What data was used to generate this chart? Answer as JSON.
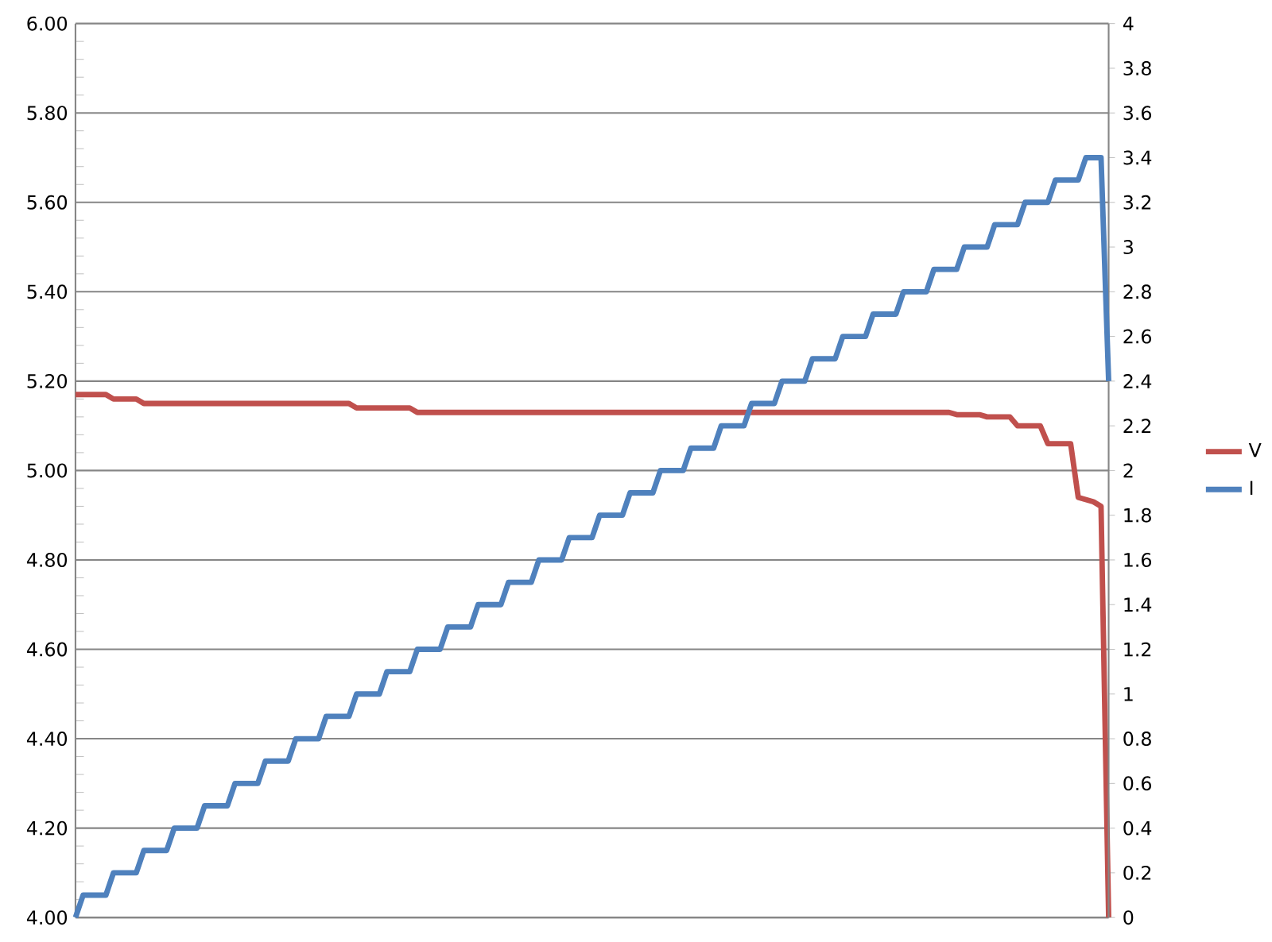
{
  "chart_data": {
    "type": "line",
    "categories": [
      null,
      null,
      null,
      null,
      null,
      null,
      null,
      null,
      null,
      null,
      null,
      null,
      null,
      null,
      null,
      null,
      null,
      null,
      null,
      null,
      null,
      null,
      null,
      null,
      null,
      null,
      null,
      null,
      null,
      null,
      null,
      null,
      null,
      null,
      null,
      null,
      null,
      null,
      null,
      null,
      null,
      null,
      null,
      null,
      null,
      null,
      null,
      null,
      null,
      null,
      null,
      null,
      null,
      null,
      null,
      null,
      null,
      null,
      null,
      null,
      null,
      null,
      null,
      null,
      null,
      null,
      null,
      null,
      null,
      null,
      null,
      null,
      null,
      null,
      null,
      null,
      null,
      null,
      null,
      null,
      null,
      null,
      null,
      null,
      null,
      null,
      null,
      null,
      null,
      null,
      null,
      null,
      null,
      null,
      null,
      null,
      null,
      null,
      null,
      null,
      null,
      null,
      null,
      null,
      null,
      null,
      null,
      null,
      null,
      null,
      null,
      null,
      null,
      null,
      null,
      null,
      null,
      null,
      null,
      null,
      null,
      null,
      null,
      null,
      null,
      null,
      null,
      null,
      null,
      null,
      null,
      null,
      null,
      null,
      null,
      null,
      null
    ],
    "series": [
      {
        "name": "V",
        "color": "#c0504d",
        "axis": "y",
        "values": [
          5.17,
          5.17,
          5.17,
          5.17,
          5.17,
          5.16,
          5.16,
          5.16,
          5.16,
          5.15,
          5.15,
          5.15,
          5.15,
          5.15,
          5.15,
          5.15,
          5.15,
          5.15,
          5.15,
          5.15,
          5.15,
          5.15,
          5.15,
          5.15,
          5.15,
          5.15,
          5.15,
          5.15,
          5.15,
          5.15,
          5.15,
          5.15,
          5.15,
          5.15,
          5.15,
          5.15,
          5.15,
          5.14,
          5.14,
          5.14,
          5.14,
          5.14,
          5.14,
          5.14,
          5.14,
          5.13,
          5.13,
          5.13,
          5.13,
          5.13,
          5.13,
          5.13,
          5.13,
          5.13,
          5.13,
          5.13,
          5.13,
          5.13,
          5.13,
          5.13,
          5.13,
          5.13,
          5.13,
          5.13,
          5.13,
          5.13,
          5.13,
          5.13,
          5.13,
          5.13,
          5.13,
          5.13,
          5.13,
          5.13,
          5.13,
          5.13,
          5.13,
          5.13,
          5.13,
          5.13,
          5.13,
          5.13,
          5.13,
          5.13,
          5.13,
          5.13,
          5.13,
          5.13,
          5.13,
          5.13,
          5.13,
          5.13,
          5.13,
          5.13,
          5.13,
          5.13,
          5.13,
          5.13,
          5.13,
          5.13,
          5.13,
          5.13,
          5.13,
          5.13,
          5.13,
          5.13,
          5.13,
          5.13,
          5.13,
          5.13,
          5.13,
          5.13,
          5.13,
          5.13,
          5.13,
          5.13,
          5.125,
          5.125,
          5.125,
          5.125,
          5.12,
          5.12,
          5.12,
          5.12,
          5.1,
          5.1,
          5.1,
          5.1,
          5.06,
          5.06,
          5.06,
          5.06,
          4.94,
          4.935,
          4.93,
          4.92,
          4.0
        ]
      },
      {
        "name": "I",
        "color": "#4f81bd",
        "axis": "y2",
        "values": [
          0,
          0.1,
          0.1,
          0.1,
          0.1,
          0.2,
          0.2,
          0.2,
          0.2,
          0.3,
          0.3,
          0.3,
          0.3,
          0.4,
          0.4,
          0.4,
          0.4,
          0.5,
          0.5,
          0.5,
          0.5,
          0.6,
          0.6,
          0.6,
          0.6,
          0.7,
          0.7,
          0.7,
          0.7,
          0.8,
          0.8,
          0.8,
          0.8,
          0.9,
          0.9,
          0.9,
          0.9,
          1.0,
          1.0,
          1.0,
          1.0,
          1.1,
          1.1,
          1.1,
          1.1,
          1.2,
          1.2,
          1.2,
          1.2,
          1.3,
          1.3,
          1.3,
          1.3,
          1.4,
          1.4,
          1.4,
          1.4,
          1.5,
          1.5,
          1.5,
          1.5,
          1.6,
          1.6,
          1.6,
          1.6,
          1.7,
          1.7,
          1.7,
          1.7,
          1.8,
          1.8,
          1.8,
          1.8,
          1.9,
          1.9,
          1.9,
          1.9,
          2.0,
          2.0,
          2.0,
          2.0,
          2.1,
          2.1,
          2.1,
          2.1,
          2.2,
          2.2,
          2.2,
          2.2,
          2.3,
          2.3,
          2.3,
          2.3,
          2.4,
          2.4,
          2.4,
          2.4,
          2.5,
          2.5,
          2.5,
          2.5,
          2.6,
          2.6,
          2.6,
          2.6,
          2.7,
          2.7,
          2.7,
          2.7,
          2.8,
          2.8,
          2.8,
          2.8,
          2.9,
          2.9,
          2.9,
          2.9,
          3.0,
          3.0,
          3.0,
          3.0,
          3.1,
          3.1,
          3.1,
          3.1,
          3.2,
          3.2,
          3.2,
          3.2,
          3.3,
          3.3,
          3.3,
          3.3,
          3.4,
          3.4,
          3.4,
          2.4
        ]
      }
    ],
    "ylim": [
      4,
      6
    ],
    "yticks": [
      {
        "value": 4,
        "label": "4.00"
      },
      {
        "value": 4.2,
        "label": "4.20"
      },
      {
        "value": 4.4,
        "label": "4.40"
      },
      {
        "value": 4.6,
        "label": "4.60"
      },
      {
        "value": 4.8,
        "label": "4.80"
      },
      {
        "value": 5,
        "label": "5.00"
      },
      {
        "value": 5.2,
        "label": "5.20"
      },
      {
        "value": 5.4,
        "label": "5.40"
      },
      {
        "value": 5.6,
        "label": "5.60"
      },
      {
        "value": 5.8,
        "label": "5.80"
      },
      {
        "value": 6,
        "label": "6.00"
      }
    ],
    "y2lim": [
      0,
      4
    ],
    "y2ticks": [
      0,
      0.2,
      0.4,
      0.6,
      0.8,
      1,
      1.2,
      1.4,
      1.6,
      1.8,
      2,
      2.2,
      2.4,
      2.6,
      2.8,
      3,
      3.2,
      3.4,
      3.6,
      3.8,
      4
    ],
    "grid": "y",
    "legend": "right",
    "marker": "none",
    "line_style": "solid"
  }
}
